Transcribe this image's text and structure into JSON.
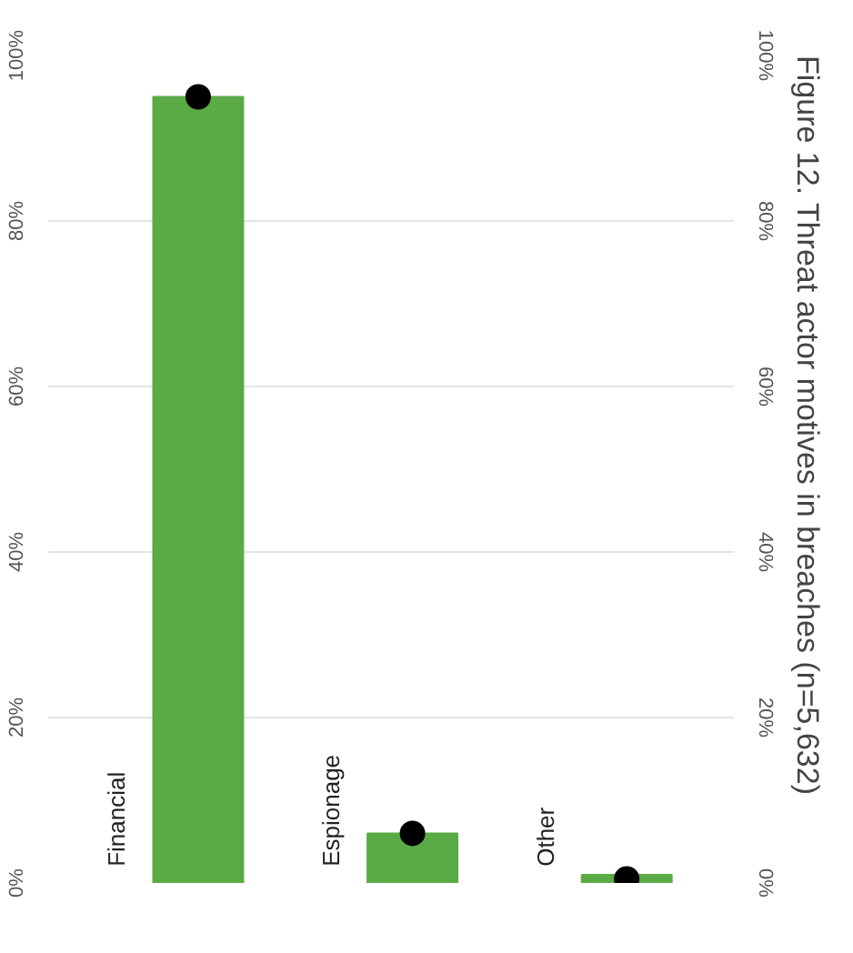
{
  "chart_data": {
    "type": "bar",
    "title": "Figure 12. Threat actor motives in breaches (n=5,632)",
    "categories": [
      "Financial",
      "Espionage",
      "Other"
    ],
    "series": [
      {
        "type": "bar",
        "color": "#5aaa46",
        "values": [
          95,
          6,
          1
        ]
      },
      {
        "type": "scatter",
        "color": "#000000",
        "x": [
          "Financial",
          "Espionage",
          "Other"
        ],
        "values": [
          95,
          6,
          0.5
        ]
      }
    ],
    "ylim": [
      0,
      100
    ],
    "yticks": [
      {
        "value": 0,
        "label": "0%"
      },
      {
        "value": 20,
        "label": "20%"
      },
      {
        "value": 40,
        "label": "40%"
      },
      {
        "value": 60,
        "label": "60%"
      },
      {
        "value": 80,
        "label": "80%"
      },
      {
        "value": 100,
        "label": "100%"
      }
    ],
    "y2lim": [
      0,
      100
    ],
    "y2ticks": [
      {
        "value": 0,
        "label": "0%"
      },
      {
        "value": 20,
        "label": "20%"
      },
      {
        "value": 40,
        "label": "40%"
      },
      {
        "value": 60,
        "label": "60%"
      },
      {
        "value": 80,
        "label": "80%"
      },
      {
        "value": 100,
        "label": "100%"
      }
    ],
    "grid": "y",
    "marker": "circle"
  }
}
